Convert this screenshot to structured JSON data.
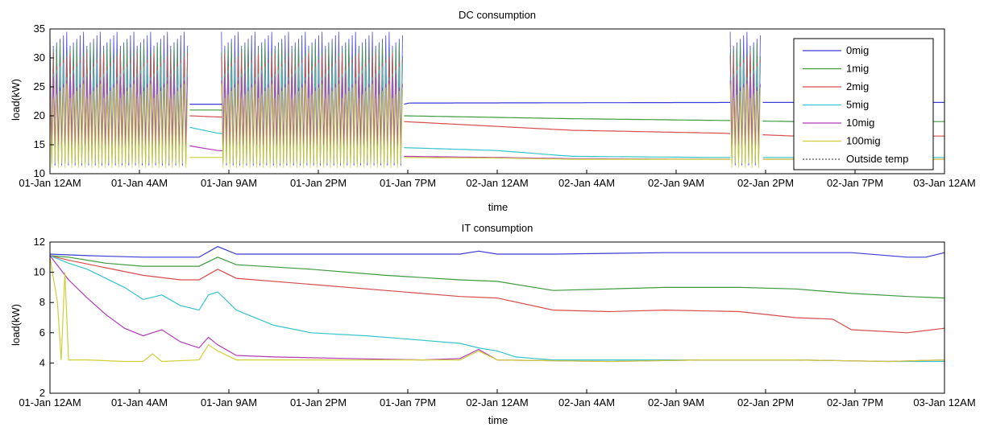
{
  "chart_data": [
    {
      "type": "line",
      "title": "DC consumption",
      "xlabel": "time",
      "ylabel": "load(kW)",
      "ylim": [
        10,
        35
      ],
      "yticks": [
        10,
        15,
        20,
        25,
        30,
        35
      ],
      "xlim_hours": [
        0,
        48
      ],
      "xtick_labels": [
        "01-Jan 12AM",
        "01-Jan 4AM",
        "01-Jan 9AM",
        "01-Jan 2PM",
        "01-Jan 7PM",
        "02-Jan 12AM",
        "02-Jan 4AM",
        "02-Jan 9AM",
        "02-Jan 2PM",
        "02-Jan 7PM",
        "03-Jan 12AM"
      ],
      "legend_position": "top-right",
      "legend": [
        {
          "name": "0mig",
          "color": "#3b3bd6"
        },
        {
          "name": "1mig",
          "color": "#3d9a3d"
        },
        {
          "name": "2mig",
          "color": "#d84c4c"
        },
        {
          "name": "5mig",
          "color": "#37c3cf"
        },
        {
          "name": "10mig",
          "color": "#b23ab8"
        },
        {
          "name": "100mig",
          "color": "#cfcf3a"
        },
        {
          "name": "Outside temp",
          "color": "#555555"
        }
      ],
      "series": [
        {
          "name": "0mig",
          "x": [
            0,
            7.5,
            7.6,
            9,
            9.1,
            19,
            19.1,
            36,
            36.1,
            48
          ],
          "y": [
            22,
            22,
            22,
            22,
            22,
            22,
            22.2,
            22.3,
            22.3,
            22.3
          ]
        },
        {
          "name": "1mig",
          "x": [
            0,
            7.5,
            9,
            19,
            28,
            36,
            40,
            48
          ],
          "y": [
            21,
            21,
            21,
            20,
            19.5,
            19.2,
            19,
            19
          ]
        },
        {
          "name": "2mig",
          "x": [
            0,
            7.5,
            9,
            19,
            28,
            36,
            40,
            48
          ],
          "y": [
            20,
            20,
            19.8,
            19,
            17.5,
            17,
            16.5,
            16.5
          ]
        },
        {
          "name": "5mig",
          "x": [
            0,
            7.5,
            9,
            19,
            24,
            28,
            36,
            48
          ],
          "y": [
            18,
            18,
            17,
            14.5,
            14,
            13,
            12.8,
            12.8
          ]
        },
        {
          "name": "10mig",
          "x": [
            0,
            7.5,
            9,
            19,
            24,
            28,
            36,
            48
          ],
          "y": [
            15,
            14.8,
            14,
            13,
            12.8,
            12.6,
            12.5,
            12.5
          ]
        },
        {
          "name": "100mig",
          "x": [
            0,
            7.5,
            9,
            19,
            24,
            28,
            36,
            48
          ],
          "y": [
            12.5,
            12.8,
            12.8,
            12.8,
            12.7,
            12.5,
            12.5,
            12.5
          ]
        }
      ],
      "busy_periods_hours": [
        [
          0,
          7.4
        ],
        [
          9.2,
          19
        ],
        [
          36.5,
          38.2
        ]
      ],
      "busy_range": [
        11,
        34.5
      ]
    },
    {
      "type": "line",
      "title": "IT consumption",
      "xlabel": "time",
      "ylabel": "load(kW)",
      "ylim": [
        2,
        12
      ],
      "yticks": [
        2,
        4,
        6,
        8,
        10,
        12
      ],
      "xlim_hours": [
        0,
        48
      ],
      "xtick_labels": [
        "01-Jan 12AM",
        "01-Jan 4AM",
        "01-Jan 9AM",
        "01-Jan 2PM",
        "01-Jan 7PM",
        "02-Jan 12AM",
        "02-Jan 4AM",
        "02-Jan 9AM",
        "02-Jan 2PM",
        "02-Jan 7PM",
        "03-Jan 12AM"
      ],
      "series": [
        {
          "name": "0mig",
          "x": [
            0,
            2,
            5,
            8,
            9,
            10,
            15,
            22,
            23,
            24,
            27,
            33,
            37,
            40,
            43,
            46,
            47,
            48
          ],
          "y": [
            11.2,
            11.1,
            11,
            11,
            11.7,
            11.2,
            11.2,
            11.2,
            11.4,
            11.2,
            11.2,
            11.3,
            11.3,
            11.3,
            11.3,
            11,
            11,
            11.3
          ]
        },
        {
          "name": "1mig",
          "x": [
            0,
            1,
            3,
            5,
            8,
            9,
            10,
            14,
            18,
            22,
            24,
            27,
            33,
            37,
            40,
            43,
            46,
            48
          ],
          "y": [
            11.1,
            11,
            10.6,
            10.4,
            10.4,
            11,
            10.5,
            10.2,
            9.8,
            9.5,
            9.4,
            8.8,
            9,
            9,
            8.9,
            8.6,
            8.4,
            8.3
          ]
        },
        {
          "name": "2mig",
          "x": [
            0,
            1,
            3,
            5,
            7,
            8,
            9,
            10,
            14,
            18,
            22,
            24,
            27,
            30,
            33,
            37,
            40,
            42,
            43,
            46,
            48
          ],
          "y": [
            11.1,
            10.8,
            10.3,
            9.8,
            9.5,
            9.5,
            10.2,
            9.6,
            9.2,
            8.8,
            8.4,
            8.3,
            7.5,
            7.4,
            7.5,
            7.4,
            7,
            6.9,
            6.2,
            6,
            6.3
          ]
        },
        {
          "name": "5mig",
          "x": [
            0,
            1,
            2,
            4,
            5,
            6,
            7,
            8,
            8.5,
            9,
            10,
            12,
            14,
            17,
            20,
            22,
            23,
            24,
            25,
            26,
            27,
            30,
            35,
            40,
            45,
            48
          ],
          "y": [
            11.1,
            10.6,
            10.2,
            9,
            8.2,
            8.5,
            7.8,
            7.5,
            8.5,
            8.7,
            7.5,
            6.5,
            6,
            5.8,
            5.5,
            5.3,
            5,
            4.8,
            4.4,
            4.3,
            4.2,
            4.2,
            4.2,
            4.2,
            4.1,
            4.1
          ]
        },
        {
          "name": "10mig",
          "x": [
            0,
            1,
            2,
            3,
            4,
            5,
            6,
            7,
            8,
            8.5,
            9,
            10,
            12,
            16,
            20,
            22,
            23,
            24,
            30,
            35,
            40,
            45,
            48
          ],
          "y": [
            11.1,
            9.5,
            8.3,
            7.2,
            6.3,
            5.8,
            6.2,
            5.4,
            5,
            5.7,
            5.2,
            4.5,
            4.4,
            4.3,
            4.2,
            4.3,
            4.9,
            4.2,
            4.1,
            4.2,
            4.2,
            4.1,
            4.2
          ]
        },
        {
          "name": "100mig",
          "x": [
            0,
            0.4,
            0.6,
            0.8,
            1,
            2,
            4,
            5,
            5.5,
            6,
            8,
            8.5,
            9,
            10,
            14,
            18,
            22,
            23,
            24,
            30,
            35,
            40,
            45,
            48
          ],
          "y": [
            11,
            8,
            4.2,
            10,
            4.2,
            4.2,
            4.1,
            4.1,
            4.6,
            4.1,
            4.2,
            5.2,
            4.8,
            4.2,
            4.2,
            4.2,
            4.2,
            4.8,
            4.2,
            4.1,
            4.2,
            4.2,
            4.1,
            4.2
          ]
        }
      ]
    }
  ]
}
